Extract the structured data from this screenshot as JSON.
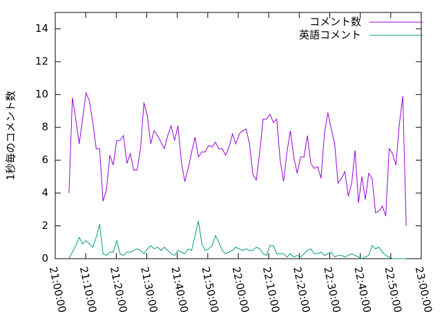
{
  "chart_data": {
    "type": "line",
    "ylabel": "1秒毎のコメント数",
    "x": [
      "21:04:30",
      "21:05:37",
      "21:06:44",
      "21:07:51",
      "21:08:58",
      "21:10:05",
      "21:11:12",
      "21:12:19",
      "21:13:26",
      "21:14:33",
      "21:15:40",
      "21:16:47",
      "21:17:54",
      "21:19:01",
      "21:20:08",
      "21:21:15",
      "21:22:22",
      "21:23:29",
      "21:24:36",
      "21:25:43",
      "21:26:50",
      "21:27:57",
      "21:29:04",
      "21:30:11",
      "21:31:18",
      "21:32:25",
      "21:33:32",
      "21:34:39",
      "21:35:46",
      "21:36:53",
      "21:38:00",
      "21:39:07",
      "21:40:14",
      "21:41:21",
      "21:42:28",
      "21:43:35",
      "21:44:42",
      "21:45:49",
      "21:46:56",
      "21:48:03",
      "21:49:10",
      "21:50:17",
      "21:51:24",
      "21:52:31",
      "21:53:38",
      "21:54:45",
      "21:55:52",
      "21:56:59",
      "21:58:06",
      "21:59:13",
      "22:00:20",
      "22:01:27",
      "22:02:34",
      "22:03:41",
      "22:04:48",
      "22:05:55",
      "22:07:02",
      "22:08:09",
      "22:09:16",
      "22:10:23",
      "22:11:30",
      "22:12:37",
      "22:13:44",
      "22:14:51",
      "22:15:58",
      "22:17:05",
      "22:18:12",
      "22:19:19",
      "22:20:26",
      "22:21:33",
      "22:22:40",
      "22:23:47",
      "22:24:54",
      "22:26:01",
      "22:27:08",
      "22:28:15",
      "22:29:22",
      "22:30:29",
      "22:31:36",
      "22:32:43",
      "22:33:50",
      "22:34:57",
      "22:36:04",
      "22:37:11",
      "22:38:18",
      "22:39:25",
      "22:40:32",
      "22:41:39",
      "22:42:46",
      "22:43:53",
      "22:45:00",
      "22:46:07",
      "22:47:14",
      "22:48:21",
      "22:49:28",
      "22:50:35",
      "22:51:42",
      "22:52:49",
      "22:53:56",
      "22:55:03"
    ],
    "series": [
      {
        "name": "コメント数",
        "color": "#9400d3",
        "values": [
          4.0,
          9.8,
          8.5,
          7.0,
          8.5,
          10.1,
          9.6,
          8.3,
          6.7,
          6.7,
          3.5,
          4.2,
          6.3,
          5.7,
          7.2,
          7.2,
          7.5,
          5.8,
          6.4,
          5.4,
          5.4,
          6.7,
          9.5,
          8.7,
          7.0,
          7.8,
          7.5,
          7.1,
          6.7,
          7.5,
          8.1,
          7.2,
          8.1,
          5.9,
          4.7,
          5.5,
          6.5,
          7.4,
          6.2,
          6.5,
          6.5,
          6.9,
          6.8,
          7.1,
          6.7,
          6.7,
          6.3,
          6.8,
          7.6,
          7.0,
          7.6,
          7.8,
          7.9,
          7.0,
          5.1,
          4.8,
          6.5,
          8.5,
          8.5,
          8.8,
          8.3,
          8.5,
          6.0,
          4.7,
          6.5,
          7.8,
          6.2,
          5.2,
          6.2,
          6.2,
          7.5,
          5.8,
          5.5,
          5.6,
          4.9,
          7.6,
          8.9,
          7.9,
          7.0,
          4.6,
          4.9,
          5.3,
          3.8,
          4.6,
          6.6,
          3.4,
          5.0,
          3.6,
          5.2,
          4.9,
          2.8,
          2.9,
          3.2,
          2.6,
          6.7,
          6.4,
          5.7,
          8.2,
          9.9,
          2.0
        ]
      },
      {
        "name": "英語コメント",
        "color": "#009e73",
        "values": [
          0,
          0.4,
          0.8,
          1.3,
          0.9,
          1.1,
          0.9,
          0.7,
          1.3,
          2.1,
          0.3,
          0.2,
          0.4,
          0.4,
          1.1,
          0.3,
          0.2,
          0.4,
          0.4,
          0.5,
          0.6,
          0.5,
          0.3,
          0.6,
          0.8,
          0.6,
          0.7,
          0.5,
          0.7,
          0.5,
          0.3,
          0.2,
          0.5,
          0.4,
          0.3,
          0.6,
          0.5,
          1.4,
          2.3,
          0.9,
          0.5,
          0.6,
          0.8,
          1.4,
          1.0,
          0.5,
          0.3,
          0.4,
          0.5,
          0.7,
          0.6,
          0.5,
          0.6,
          0.5,
          0.5,
          0.7,
          0.6,
          0.3,
          0.2,
          0.8,
          0.8,
          0.3,
          0.3,
          0.3,
          0.1,
          0.3,
          0.1,
          0.2,
          0.1,
          0.3,
          0.5,
          0.6,
          0.3,
          0.3,
          0.4,
          0.2,
          0.3,
          0.4,
          0.1,
          0.2,
          0.2,
          0.1,
          0.2,
          0.3,
          0.2,
          0.1,
          0.0,
          0.1,
          0.2,
          0.8,
          0.6,
          0.7,
          0.4,
          0.2,
          0.1,
          0.0,
          0.0,
          0.0,
          0.0,
          0.0
        ]
      }
    ],
    "xlim": [
      "21:00:00",
      "23:00:00"
    ],
    "xticks": [
      "21:00:00",
      "21:10:00",
      "21:20:00",
      "21:30:00",
      "21:40:00",
      "21:50:00",
      "22:00:00",
      "22:10:00",
      "22:20:00",
      "22:30:00",
      "22:40:00",
      "22:50:00",
      "23:00:00"
    ],
    "ylim": [
      0,
      15
    ],
    "yticks": [
      0,
      2,
      4,
      6,
      8,
      10,
      12,
      14
    ],
    "legend": "top-right"
  }
}
